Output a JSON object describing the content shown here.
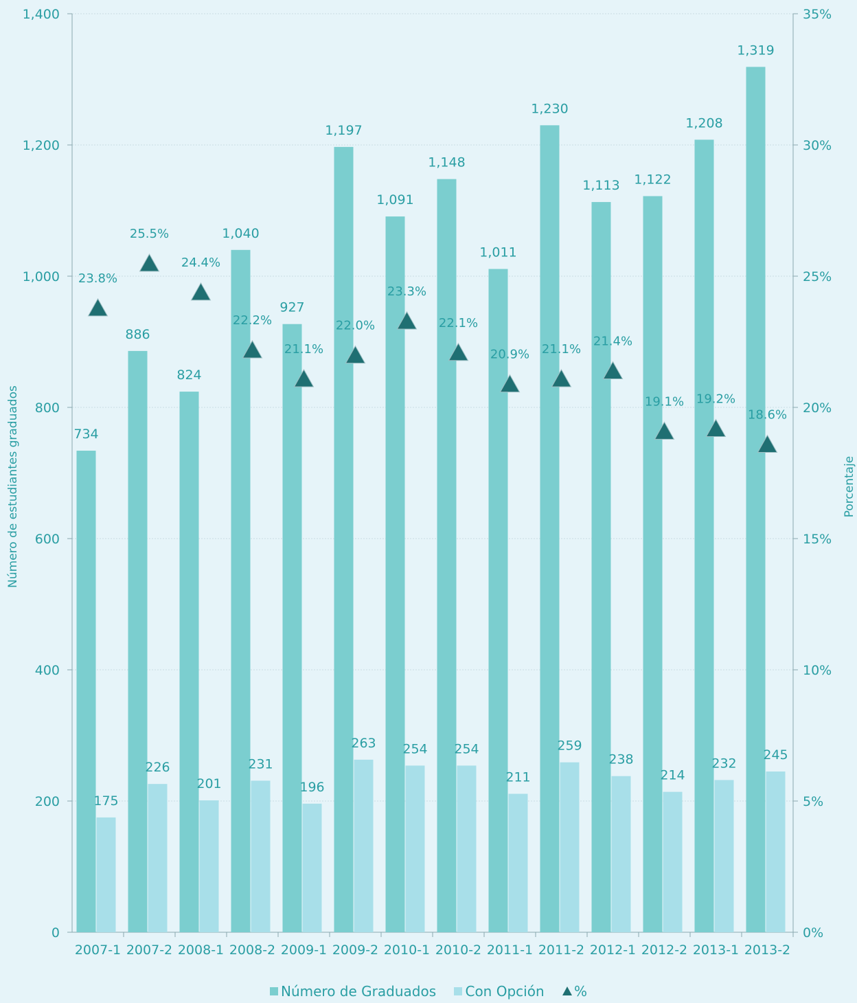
{
  "chart_data": {
    "type": "bar",
    "categories": [
      "2007-1",
      "2007-2",
      "2008-1",
      "2008-2",
      "2009-1",
      "2009-2",
      "2010-1",
      "2010-2",
      "2011-1",
      "2011-2",
      "2012-1",
      "2012-2",
      "2013-1",
      "2013-2"
    ],
    "series": [
      {
        "name": "Número de Graduados",
        "values": [
          734,
          886,
          824,
          1040,
          927,
          1197,
          1091,
          1148,
          1011,
          1230,
          1113,
          1122,
          1208,
          1319
        ],
        "labels": [
          "734",
          "886",
          "824",
          "1,040",
          "927",
          "1,197",
          "1,091",
          "1,148",
          "1,011",
          "1,230",
          "1,113",
          "1,122",
          "1,208",
          "1,319"
        ],
        "color": "#7bcecf",
        "axis": "left"
      },
      {
        "name": "Con Opción",
        "values": [
          175,
          226,
          201,
          231,
          196,
          263,
          254,
          254,
          211,
          259,
          238,
          214,
          232,
          245
        ],
        "labels": [
          "175",
          "226",
          "201",
          "231",
          "196",
          "263",
          "254",
          "254",
          "211",
          "259",
          "238",
          "214",
          "232",
          "245"
        ],
        "color": "#a8dfe9",
        "axis": "left"
      },
      {
        "name": "%",
        "values": [
          23.8,
          25.5,
          24.4,
          22.2,
          21.1,
          22.0,
          23.3,
          22.1,
          20.9,
          21.1,
          21.4,
          19.1,
          19.2,
          18.6
        ],
        "labels": [
          "23.8%",
          "25.5%",
          "24.4%",
          "22.2%",
          "21.1%",
          "22.0%",
          "23.3%",
          "22.1%",
          "20.9%",
          "21.1%",
          "21.4%",
          "19.1%",
          "19.2%",
          "18.6%"
        ],
        "color": "#1f6f72",
        "marker": "triangle",
        "axis": "right"
      }
    ],
    "ylabel": "Número de estudiantes graduados",
    "ylabel_right": "Porcentaje",
    "ylim": [
      0,
      1400
    ],
    "ylim_right": [
      0,
      35
    ],
    "yticks": [
      "0",
      "200",
      "400",
      "600",
      "800",
      "1,000",
      "1,200",
      "1,400"
    ],
    "yticks_right": [
      "0%",
      "5%",
      "10%",
      "15%",
      "20%",
      "25%",
      "30%",
      "35%"
    ],
    "grid": true,
    "legend_position": "bottom"
  }
}
